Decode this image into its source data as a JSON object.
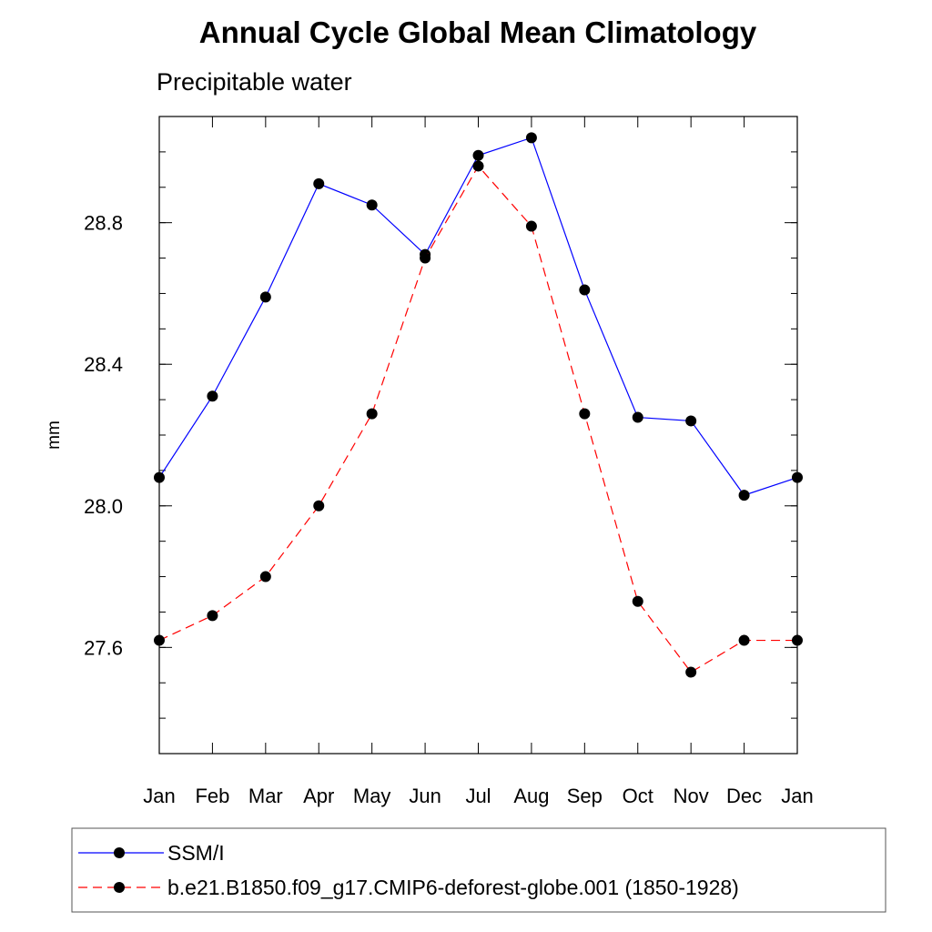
{
  "chart_data": {
    "type": "line",
    "title": "Annual Cycle Global Mean Climatology",
    "subtitle": "Precipitable water",
    "xlabel": "",
    "ylabel": "mm",
    "categories": [
      "Jan",
      "Feb",
      "Mar",
      "Apr",
      "May",
      "Jun",
      "Jul",
      "Aug",
      "Sep",
      "Oct",
      "Nov",
      "Dec",
      "Jan"
    ],
    "ylim": [
      27.3,
      29.1
    ],
    "yticks": [
      27.6,
      28.0,
      28.4,
      28.8
    ],
    "ytick_labels": [
      "27.6",
      "28.0",
      "28.4",
      "28.8"
    ],
    "grid": false,
    "legend_position": "bottom",
    "series": [
      {
        "name": "SSM/I",
        "color": "#0000ff",
        "line_style": "solid",
        "marker": "filled-circle",
        "values": [
          28.08,
          28.31,
          28.59,
          28.91,
          28.85,
          28.71,
          28.99,
          29.04,
          28.61,
          28.25,
          28.24,
          28.03,
          28.08
        ]
      },
      {
        "name": "b.e21.B1850.f09_g17.CMIP6-deforest-globe.001 (1850-1928)",
        "color": "#ff0000",
        "line_style": "dashed",
        "marker": "filled-circle",
        "values": [
          27.62,
          27.69,
          27.8,
          28.0,
          28.26,
          28.7,
          28.96,
          28.79,
          28.26,
          27.73,
          27.53,
          27.62,
          27.62
        ]
      }
    ]
  }
}
